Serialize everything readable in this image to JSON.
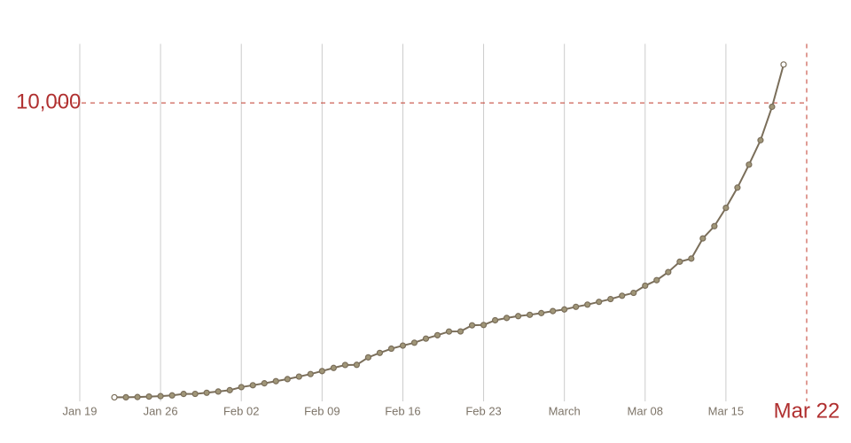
{
  "chart_data": {
    "type": "line",
    "x": [
      "Jan 22",
      "Jan 23",
      "Jan 24",
      "Jan 25",
      "Jan 26",
      "Jan 27",
      "Jan 28",
      "Jan 29",
      "Jan 30",
      "Jan 31",
      "Feb 01",
      "Feb 02",
      "Feb 03",
      "Feb 04",
      "Feb 05",
      "Feb 06",
      "Feb 07",
      "Feb 08",
      "Feb 09",
      "Feb 10",
      "Feb 11",
      "Feb 12",
      "Feb 13",
      "Feb 14",
      "Feb 15",
      "Feb 16",
      "Feb 17",
      "Feb 18",
      "Feb 19",
      "Feb 20",
      "Feb 21",
      "Feb 22",
      "Feb 23",
      "Feb 24",
      "Feb 25",
      "Feb 26",
      "Feb 27",
      "Feb 28",
      "Feb 29",
      "Mar 01",
      "Mar 02",
      "Mar 03",
      "Mar 04",
      "Mar 05",
      "Mar 06",
      "Mar 07",
      "Mar 08",
      "Mar 09",
      "Mar 10",
      "Mar 11",
      "Mar 12",
      "Mar 13",
      "Mar 14",
      "Mar 15",
      "Mar 16",
      "Mar 17",
      "Mar 18",
      "Mar 19",
      "Mar 20"
    ],
    "series": [
      {
        "color": "#7a6e5a",
        "values": [
          17,
          18,
          26,
          42,
          56,
          82,
          131,
          133,
          171,
          213,
          259,
          362,
          426,
          492,
          564,
          634,
          719,
          806,
          906,
          1013,
          1113,
          1118,
          1371,
          1523,
          1666,
          1770,
          1868,
          2007,
          2122,
          2247,
          2251,
          2458,
          2469,
          2629,
          2708,
          2770,
          2814,
          2872,
          2941,
          2996,
          3085,
          3160,
          3254,
          3348,
          3460,
          3558,
          3802,
          3988,
          4262,
          4615,
          4720,
          5404,
          5819,
          6440,
          7126,
          7905,
          8733,
          9867,
          11299
        ]
      }
    ],
    "xlim": [
      "Jan 19",
      "Mar 22"
    ],
    "xticks": [
      "Jan 19",
      "Jan 26",
      "Feb 02",
      "Feb 09",
      "Feb 16",
      "Feb 23",
      {
        "value": "Mar 01",
        "label": "March"
      },
      "Mar 08",
      "Mar 15",
      "Mar 22"
    ],
    "ylim": [
      0,
      12000
    ],
    "yticks": [
      {
        "value": 10000,
        "label": "10,000"
      }
    ],
    "grid": true
  }
}
